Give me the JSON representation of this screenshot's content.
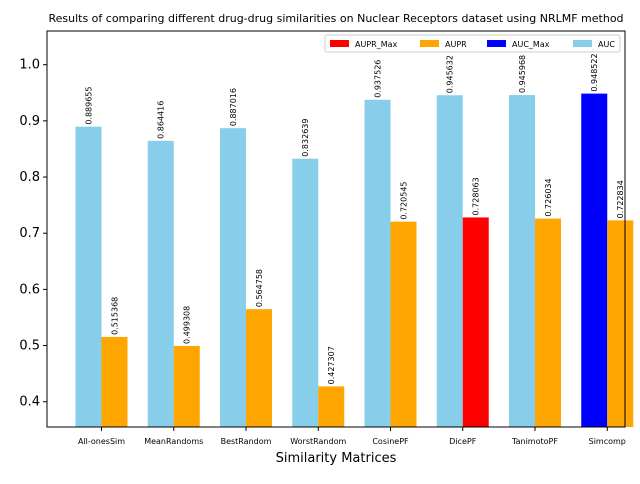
{
  "chart_data": {
    "type": "bar",
    "title": "Results of comparing different drug-drug similarities on Nuclear Receptors dataset using NRLMF method",
    "xlabel": "Similarity Matrices",
    "ylabel": "",
    "ylim": [
      0.355,
      1.06
    ],
    "yticks": [
      "0.4",
      "0.5",
      "0.6",
      "0.7",
      "0.8",
      "0.9",
      "1.0"
    ],
    "grid": false,
    "legend_position": "top-right",
    "categories": [
      "All-onesSim",
      "MeanRandoms",
      "BestRandom",
      "WorstRandom",
      "CosinePF",
      "DicePF",
      "TanimotoPF",
      "Simcomp"
    ],
    "series": [
      {
        "name": "AUC",
        "color": "#87CEEB",
        "max_color": "#0000FF",
        "values": [
          0.889655,
          0.864416,
          0.887016,
          0.832639,
          0.937526,
          0.945632,
          0.945968,
          0.948522
        ],
        "labels": [
          "0.889655",
          "0.864416",
          "0.887016",
          "0.832639",
          "0.937526",
          "0.945632",
          "0.945968",
          "0.948522"
        ]
      },
      {
        "name": "AUPR",
        "color": "#FFA500",
        "max_color": "#FF0000",
        "values": [
          0.515368,
          0.499308,
          0.564758,
          0.427307,
          0.720545,
          0.728063,
          0.726034,
          0.722834
        ],
        "labels": [
          "0.515368",
          "0.499308",
          "0.564758",
          "0.427307",
          "0.720545",
          "0.728063",
          "0.726034",
          "0.722834"
        ]
      }
    ],
    "legend": [
      {
        "label": "AUPR_Max",
        "color": "#FF0000"
      },
      {
        "label": "AUPR",
        "color": "#FFA500"
      },
      {
        "label": "AUC_Max",
        "color": "#0000FF"
      },
      {
        "label": "AUC",
        "color": "#87CEEB"
      }
    ]
  }
}
